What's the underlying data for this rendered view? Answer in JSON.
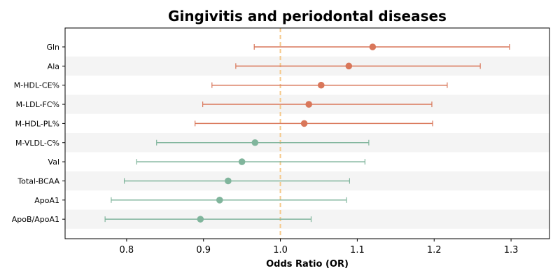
{
  "chart_data": {
    "type": "scatter",
    "subtype": "forest-plot",
    "title": "Gingivitis and periodontal diseases",
    "xlabel": "Odds Ratio (OR)",
    "ylabel": "",
    "xlim": [
      0.72,
      1.35
    ],
    "xticks": [
      "0.8",
      "0.9",
      "1.0",
      "1.1",
      "1.2",
      "1.3"
    ],
    "reference_line": 1.0,
    "grid": false,
    "row_banding": true,
    "colors": {
      "increase": "#d9775a",
      "decrease": "#80b59c",
      "reference": "#f5c98a",
      "band": "#f4f4f4"
    },
    "rows": [
      {
        "label": "Gln",
        "or": 1.12,
        "lower": 0.966,
        "upper": 1.298,
        "group": "increase"
      },
      {
        "label": "Ala",
        "or": 1.089,
        "lower": 0.942,
        "upper": 1.26,
        "group": "increase"
      },
      {
        "label": "M-HDL-CE%",
        "or": 1.053,
        "lower": 0.911,
        "upper": 1.217,
        "group": "increase"
      },
      {
        "label": "M-LDL-FC%",
        "or": 1.037,
        "lower": 0.899,
        "upper": 1.197,
        "group": "increase"
      },
      {
        "label": "M-HDL-PL%",
        "or": 1.031,
        "lower": 0.889,
        "upper": 1.198,
        "group": "increase"
      },
      {
        "label": "M-VLDL-C%",
        "or": 0.967,
        "lower": 0.839,
        "upper": 1.115,
        "group": "decrease"
      },
      {
        "label": "Val",
        "or": 0.95,
        "lower": 0.813,
        "upper": 1.11,
        "group": "decrease"
      },
      {
        "label": "Total-BCAA",
        "or": 0.932,
        "lower": 0.797,
        "upper": 1.09,
        "group": "decrease"
      },
      {
        "label": "ApoA1",
        "or": 0.921,
        "lower": 0.78,
        "upper": 1.086,
        "group": "decrease"
      },
      {
        "label": "ApoB/ApoA1",
        "or": 0.896,
        "lower": 0.772,
        "upper": 1.04,
        "group": "decrease"
      }
    ]
  }
}
